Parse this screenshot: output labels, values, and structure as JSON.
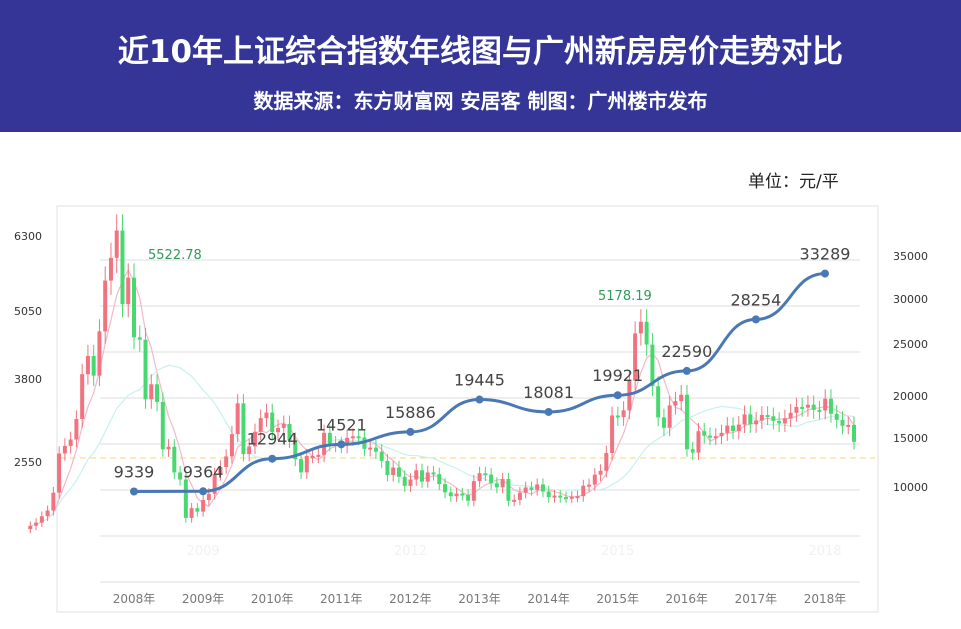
{
  "header": {
    "title": "近10年上证综合指数年线图与广州新房房价走势对比",
    "subtitle": "数据来源：东方财富网 安居客 制图：广州楼市发布"
  },
  "unit": "单位：元/平",
  "chart_data": {
    "type": "candlestick+line",
    "left_axis_ticks": [
      "6300",
      "5050",
      "3800",
      "2550"
    ],
    "right_axis_ticks": [
      "35000",
      "30000",
      "25000",
      "20000",
      "15000",
      "10000"
    ],
    "categories": [
      "2008年",
      "2009年",
      "2010年",
      "2011年",
      "2012年",
      "2013年",
      "2014年",
      "2015年",
      "2016年",
      "2017年",
      "2018年"
    ],
    "watermarks": [
      "2009",
      "2012",
      "2015",
      "2018"
    ],
    "price_series": {
      "values": [
        9339,
        9364,
        12944,
        14521,
        15886,
        19445,
        18081,
        19921,
        22590,
        28254,
        33289
      ],
      "color": "#4a78b5"
    },
    "index_peaks": [
      {
        "label": "5522.78"
      },
      {
        "label": "5178.19"
      }
    ],
    "candles": {
      "start": "2006-07",
      "close": [
        1612,
        1658,
        1752,
        1837,
        2099,
        2675,
        2786,
        2881,
        3183,
        3841,
        4109,
        3820,
        4471,
        5218,
        5552,
        5954,
        4871,
        5261,
        4383,
        4348,
        3472,
        3693,
        3433,
        2736,
        2775,
        2397,
        2293,
        1728,
        1871,
        1820,
        1990,
        2082,
        2373,
        2477,
        2632,
        2959,
        3412,
        2667,
        2779,
        2995,
        3195,
        3277,
        2989,
        3051,
        3109,
        2870,
        2592,
        2398,
        2638,
        2638,
        2655,
        2979,
        2820,
        2808,
        2790,
        2905,
        2928,
        2911,
        2743,
        2762,
        2701,
        2567,
        2359,
        2468,
        2333,
        2199,
        2292,
        2428,
        2262,
        2396,
        2372,
        2225,
        2103,
        2047,
        2086,
        2068,
        1980,
        2269,
        2385,
        2365,
        2236,
        2177,
        2300,
        1979,
        1993,
        2098,
        2175,
        2141,
        2220,
        2116,
        2033,
        2056,
        2033,
        2026,
        2039,
        2048,
        2201,
        2217,
        2364,
        2420,
        2683,
        3234,
        3210,
        3310,
        3748,
        4441,
        4612,
        4277,
        3664,
        3206,
        3053,
        3382,
        3445,
        3539,
        2737,
        2688,
        3003,
        2938,
        2916,
        2930,
        2979,
        3085,
        3004,
        3100,
        3250,
        3104,
        3159,
        3241,
        3223,
        3155,
        3117,
        3192,
        3273,
        3360,
        3349,
        3393,
        3317,
        3307,
        3480,
        3259,
        3169,
        3082,
        3095,
        2847
      ]
    },
    "colors": {
      "up": "#f0737f",
      "down": "#49d86f",
      "ma_short": "#f2b8c8",
      "ma_long": "#c7f0f0",
      "reference": "#f5d57a"
    },
    "grid": true
  }
}
